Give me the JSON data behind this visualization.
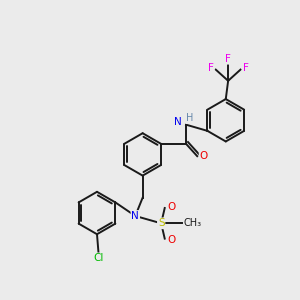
{
  "bg_color": "#ebebeb",
  "bond_color": "#1a1a1a",
  "atom_colors": {
    "N": "#0000ee",
    "O": "#ee0000",
    "F": "#ee00ee",
    "Cl": "#00bb00",
    "S": "#bbbb00",
    "H": "#6688aa",
    "C": "#1a1a1a"
  },
  "figsize": [
    3.0,
    3.0
  ],
  "dpi": 100,
  "lw": 1.4,
  "ring_r": 0.72,
  "font_size": 7.5
}
